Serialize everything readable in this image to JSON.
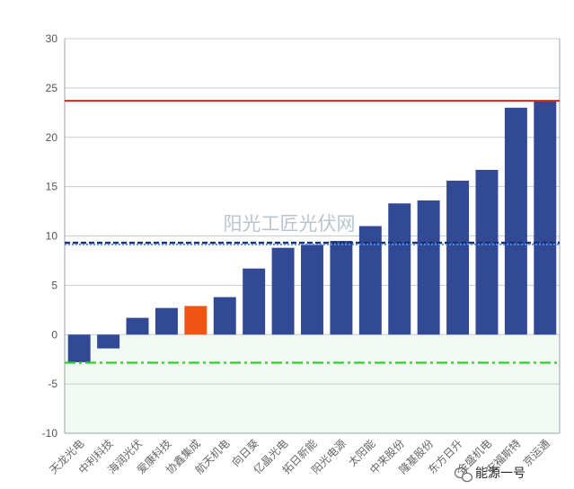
{
  "chart_data": {
    "type": "bar",
    "title": "",
    "xlabel": "",
    "ylabel": "",
    "ylim": [
      -10,
      30
    ],
    "yticks": [
      -10,
      -5,
      0,
      5,
      10,
      15,
      20,
      25,
      30
    ],
    "grid": true,
    "categories": [
      "天龙光电",
      "中利科技",
      "海润光伏",
      "爱康科技",
      "协鑫集成",
      "航天机电",
      "向日葵",
      "亿晶光电",
      "拓日新能",
      "阳光电源",
      "太阳能",
      "中来股份",
      "隆基股份",
      "东方日升",
      "金盛机电",
      "安福斯特",
      "京运通"
    ],
    "values": [
      -2.8,
      -1.4,
      1.7,
      2.7,
      2.9,
      3.8,
      6.7,
      8.8,
      9.1,
      9.5,
      11.0,
      13.3,
      13.6,
      15.6,
      16.7,
      23.0,
      23.7
    ],
    "highlight_index": 4,
    "reference_lines": [
      {
        "value": 23.7,
        "style": "solid",
        "color": "#cc2b1d"
      },
      {
        "value": 9.3,
        "style": "dashed",
        "color": "#1f2f6a"
      },
      {
        "value": 9.15,
        "style": "dotted",
        "color": "#4f8df5"
      },
      {
        "value": -2.85,
        "style": "dash-dot",
        "color": "#2fd12a"
      }
    ],
    "colors": {
      "bar": "#324a96",
      "highlight": "#ee5512",
      "axis": "#9aa3ad",
      "grid": "#c6ccd3",
      "negative_band": "#f1f9f2"
    }
  },
  "watermark": "阳光工匠光伏网",
  "footer": {
    "icon": "wechat-icon",
    "account": "能源一号"
  }
}
